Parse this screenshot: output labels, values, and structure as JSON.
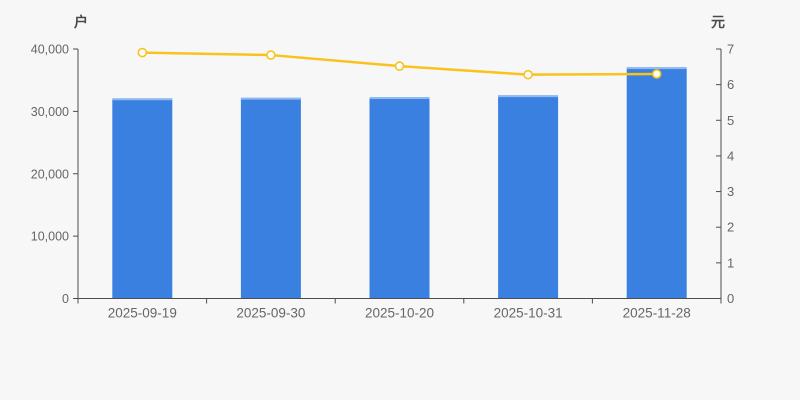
{
  "chart_data": {
    "type": "combo-bar-line",
    "title": "",
    "background_color": "#f7f7f7",
    "axis_line_color": "#4d4d4d",
    "tick_label_color": "#666666",
    "axis_name_color": "#4a4a4a",
    "grid": false,
    "legend": null,
    "categories": [
      "2025-09-19",
      "2025-09-30",
      "2025-10-20",
      "2025-10-31",
      "2025-11-28"
    ],
    "series": [
      {
        "name": "bar-series",
        "type": "bar",
        "y_axis": "left",
        "color": "#3a80e1",
        "values": [
          32100,
          32200,
          32300,
          32600,
          37100
        ]
      },
      {
        "name": "line-series",
        "type": "line",
        "y_axis": "right",
        "color": "#f9c21c",
        "marker_fill": "#ffffff",
        "values": [
          6.9,
          6.83,
          6.52,
          6.28,
          6.3
        ]
      }
    ],
    "left_axis": {
      "name": "户",
      "min": 0,
      "max": 40000,
      "tick_step": 10000,
      "tick_labels": [
        "0",
        "10,000",
        "20,000",
        "30,000",
        "40,000"
      ]
    },
    "right_axis": {
      "name": "元",
      "min": 0,
      "max": 7,
      "tick_step": 1,
      "tick_labels": [
        "0",
        "1",
        "2",
        "3",
        "4",
        "5",
        "6",
        "7"
      ]
    },
    "x_axis": {
      "labels": [
        "2025-09-19",
        "2025-09-30",
        "2025-10-20",
        "2025-10-31",
        "2025-11-28"
      ]
    }
  }
}
